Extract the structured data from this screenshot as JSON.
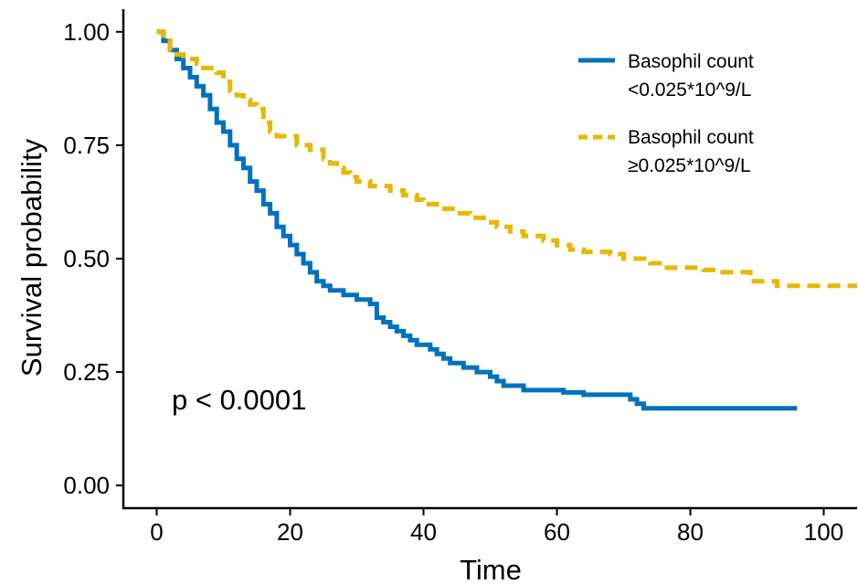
{
  "chart_data": {
    "type": "line",
    "title": "",
    "xlabel": "Time",
    "ylabel": "Survival probability",
    "xlim": [
      -5,
      105
    ],
    "ylim": [
      -0.05,
      1.05
    ],
    "x_ticks": [
      "0",
      "20",
      "40",
      "60",
      "80",
      "100"
    ],
    "y_ticks": [
      "0.00",
      "0.25",
      "0.50",
      "0.75",
      "1.00"
    ],
    "annotation": "p < 0.0001",
    "grid": false,
    "legend_position": "top-right",
    "series": [
      {
        "name_lines": [
          "Basophil count",
          "<0.025*10^9/L"
        ],
        "color": "#0072BD",
        "style": "solid",
        "step": [
          [
            0,
            1.0
          ],
          [
            1,
            0.98
          ],
          [
            2,
            0.96
          ],
          [
            3,
            0.94
          ],
          [
            4,
            0.92
          ],
          [
            5,
            0.9
          ],
          [
            6,
            0.88
          ],
          [
            7,
            0.86
          ],
          [
            8,
            0.83
          ],
          [
            9,
            0.8
          ],
          [
            10,
            0.78
          ],
          [
            11,
            0.75
          ],
          [
            12,
            0.72
          ],
          [
            13,
            0.7
          ],
          [
            14,
            0.67
          ],
          [
            15,
            0.65
          ],
          [
            16,
            0.62
          ],
          [
            17,
            0.6
          ],
          [
            18,
            0.57
          ],
          [
            19,
            0.55
          ],
          [
            20,
            0.53
          ],
          [
            21,
            0.51
          ],
          [
            22,
            0.49
          ],
          [
            23,
            0.47
          ],
          [
            24,
            0.45
          ],
          [
            25,
            0.44
          ],
          [
            26,
            0.43
          ],
          [
            28,
            0.42
          ],
          [
            30,
            0.41
          ],
          [
            32,
            0.4
          ],
          [
            33,
            0.37
          ],
          [
            34,
            0.36
          ],
          [
            35,
            0.35
          ],
          [
            36,
            0.34
          ],
          [
            37,
            0.33
          ],
          [
            38,
            0.32
          ],
          [
            39,
            0.31
          ],
          [
            41,
            0.3
          ],
          [
            42,
            0.29
          ],
          [
            43,
            0.28
          ],
          [
            44,
            0.27
          ],
          [
            46,
            0.26
          ],
          [
            48,
            0.25
          ],
          [
            50,
            0.24
          ],
          [
            51,
            0.23
          ],
          [
            52,
            0.22
          ],
          [
            55,
            0.21
          ],
          [
            61,
            0.205
          ],
          [
            64,
            0.2
          ],
          [
            71,
            0.19
          ],
          [
            72,
            0.18
          ],
          [
            73,
            0.17
          ],
          [
            96,
            0.17
          ]
        ]
      },
      {
        "name_lines": [
          "Basophil count",
          "≥0.025*10^9/L"
        ],
        "color": "#E7B800",
        "style": "dashed",
        "step": [
          [
            0,
            1.0
          ],
          [
            1,
            0.98
          ],
          [
            2,
            0.96
          ],
          [
            3,
            0.95
          ],
          [
            4,
            0.94
          ],
          [
            6,
            0.93
          ],
          [
            7,
            0.92
          ],
          [
            9,
            0.91
          ],
          [
            10,
            0.89
          ],
          [
            11,
            0.87
          ],
          [
            12,
            0.86
          ],
          [
            13,
            0.85
          ],
          [
            14,
            0.84
          ],
          [
            15,
            0.83
          ],
          [
            16,
            0.8
          ],
          [
            17,
            0.78
          ],
          [
            18,
            0.77
          ],
          [
            21,
            0.75
          ],
          [
            23,
            0.74
          ],
          [
            25,
            0.72
          ],
          [
            26,
            0.71
          ],
          [
            27,
            0.7
          ],
          [
            28,
            0.69
          ],
          [
            29,
            0.68
          ],
          [
            30,
            0.67
          ],
          [
            32,
            0.66
          ],
          [
            35,
            0.65
          ],
          [
            37,
            0.64
          ],
          [
            39,
            0.63
          ],
          [
            40,
            0.62
          ],
          [
            42,
            0.61
          ],
          [
            45,
            0.6
          ],
          [
            47,
            0.59
          ],
          [
            49,
            0.58
          ],
          [
            51,
            0.57
          ],
          [
            53,
            0.56
          ],
          [
            55,
            0.55
          ],
          [
            58,
            0.54
          ],
          [
            60,
            0.53
          ],
          [
            62,
            0.52
          ],
          [
            64,
            0.515
          ],
          [
            68,
            0.51
          ],
          [
            70,
            0.5
          ],
          [
            74,
            0.49
          ],
          [
            76,
            0.48
          ],
          [
            80,
            0.48
          ],
          [
            82,
            0.475
          ],
          [
            84,
            0.47
          ],
          [
            88,
            0.47
          ],
          [
            89,
            0.45
          ],
          [
            93,
            0.44
          ],
          [
            105,
            0.44
          ]
        ]
      }
    ]
  }
}
